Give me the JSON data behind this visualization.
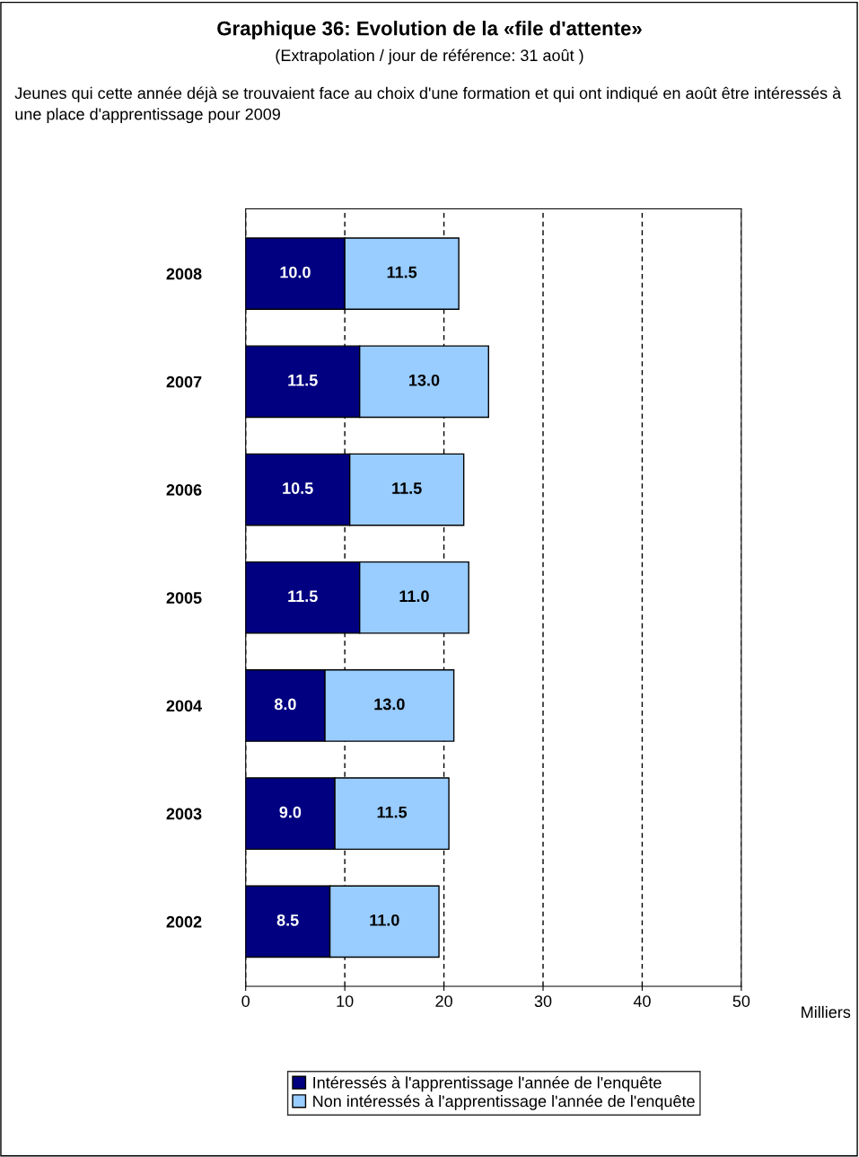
{
  "chart_data": {
    "type": "bar",
    "orientation": "horizontal",
    "stacked": true,
    "title": "Graphique 36: Evolution de la «file d'attente»",
    "subtitle": "(Extrapolation / jour de référence: 31 août )",
    "annotations": [
      "Jeunes qui cette année déjà se trouvaient face au choix d'une formation et qui ont indiqué en août être intéressés à une place d'apprentissage pour 2009"
    ],
    "xlabel": "Milliers",
    "categories": [
      "2008",
      "2007",
      "2006",
      "2005",
      "2004",
      "2003",
      "2002"
    ],
    "series": [
      {
        "name": "Intéressés à l'apprentissage l'année de l'enquête",
        "color": "#000080",
        "values": [
          10.0,
          11.5,
          10.5,
          11.5,
          8.0,
          9.0,
          8.5
        ],
        "value_labels": [
          "10.0",
          "11.5",
          "10.5",
          "11.5",
          "8.0",
          "9.0",
          "8.5"
        ]
      },
      {
        "name": "Non intéressés à l'apprentissage l'année de l'enquête",
        "color": "#99ccff",
        "values": [
          11.5,
          13.0,
          11.5,
          11.0,
          13.0,
          11.5,
          11.0
        ],
        "value_labels": [
          "11.5",
          "13.0",
          "11.5",
          "11.0",
          "13.0",
          "11.5",
          "11.0"
        ]
      }
    ],
    "xlim": [
      0,
      50
    ],
    "xticks": [
      0,
      10,
      20,
      30,
      40,
      50
    ],
    "grid": "x",
    "legend": "bottom"
  }
}
